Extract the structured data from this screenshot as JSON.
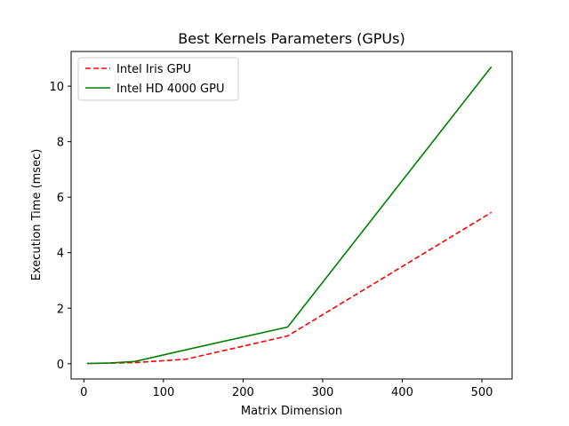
{
  "chart_data": {
    "type": "line",
    "title": "Best Kernels Parameters (GPUs)",
    "xlabel": "Matrix Dimension",
    "ylabel": "Execution Time (msec)",
    "xlim": [
      -16,
      538
    ],
    "ylim": [
      -0.55,
      11.25
    ],
    "xticks": [
      0,
      100,
      200,
      300,
      400,
      500
    ],
    "yticks": [
      0,
      2,
      4,
      6,
      8,
      10
    ],
    "grid": false,
    "legend_position": "top-left",
    "series": [
      {
        "name": "Intel Iris GPU",
        "color": "#ff0000",
        "style": "dashed",
        "x": [
          4,
          8,
          16,
          32,
          64,
          128,
          256,
          512
        ],
        "y": [
          0.01,
          0.01,
          0.015,
          0.02,
          0.04,
          0.16,
          1.0,
          5.45
        ]
      },
      {
        "name": "Intel HD 4000 GPU",
        "color": "#008000",
        "style": "solid",
        "x": [
          4,
          8,
          16,
          32,
          64,
          128,
          256,
          512
        ],
        "y": [
          0.01,
          0.01,
          0.015,
          0.025,
          0.08,
          0.5,
          1.32,
          10.7
        ]
      }
    ]
  }
}
